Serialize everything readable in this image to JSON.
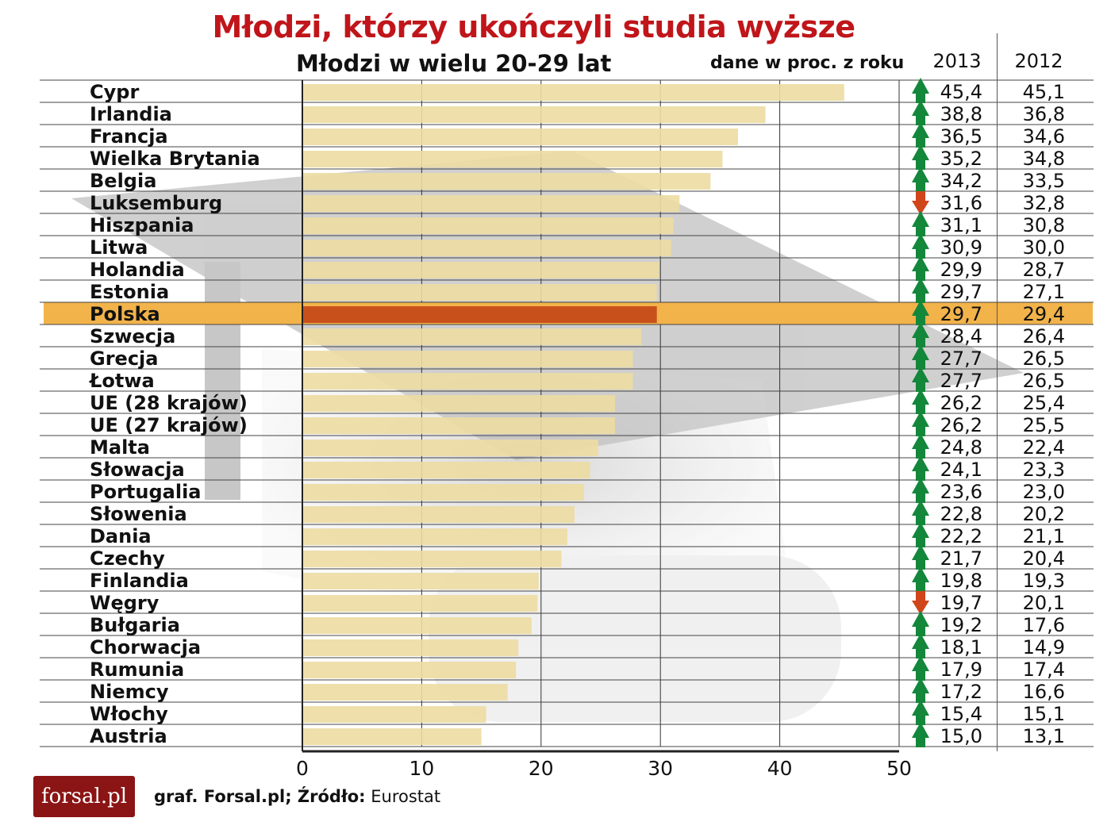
{
  "title": "Młodzi, którzy ukończyli studia wyższe",
  "subtitle": "Młodzi w wielu 20-29 lat",
  "note": "dane w proc. z roku",
  "columns": {
    "y2013": "2013",
    "y2012": "2012"
  },
  "footer": {
    "logo": "forsal.pl",
    "credit": "graf. Forsal.pl; Źródło:",
    "source": "Eurostat"
  },
  "colors": {
    "bar": "#ecdca2",
    "highlight_bar": "#c8501a",
    "highlight_row": "#f2b34a",
    "arrow_up": "#13873a",
    "arrow_down": "#d0451a",
    "title": "#c0151a"
  },
  "chart_data": {
    "type": "bar",
    "orientation": "horizontal",
    "xlim": [
      0,
      50
    ],
    "xticks": [
      0,
      10,
      20,
      30,
      40,
      50
    ],
    "highlight": "Polska",
    "categories": [
      "Cypr",
      "Irlandia",
      "Francja",
      "Wielka Brytania",
      "Belgia",
      "Luksemburg",
      "Hiszpania",
      "Litwa",
      "Holandia",
      "Estonia",
      "Polska",
      "Szwecja",
      "Grecja",
      "Łotwa",
      "UE (28 krajów)",
      "UE (27 krajów)",
      "Malta",
      "Słowacja",
      "Portugalia",
      "Słowenia",
      "Dania",
      "Czechy",
      "Finlandia",
      "Węgry",
      "Bułgaria",
      "Chorwacja",
      "Rumunia",
      "Niemcy",
      "Włochy",
      "Austria"
    ],
    "series": [
      {
        "name": "2013",
        "values": [
          45.4,
          38.8,
          36.5,
          35.2,
          34.2,
          31.6,
          31.1,
          30.9,
          29.9,
          29.7,
          29.7,
          28.4,
          27.7,
          27.7,
          26.2,
          26.2,
          24.8,
          24.1,
          23.6,
          22.8,
          22.2,
          21.7,
          19.8,
          19.7,
          19.2,
          18.1,
          17.9,
          17.2,
          15.4,
          15.0
        ]
      },
      {
        "name": "2012",
        "values": [
          45.1,
          36.8,
          34.6,
          34.8,
          33.5,
          32.8,
          30.8,
          30.0,
          28.7,
          27.1,
          29.4,
          26.4,
          26.5,
          26.5,
          25.4,
          25.5,
          22.4,
          23.3,
          23.0,
          20.2,
          21.1,
          20.4,
          19.3,
          20.1,
          17.6,
          14.9,
          17.4,
          16.6,
          15.1,
          13.1
        ]
      }
    ],
    "labels_2013": [
      "45,4",
      "38,8",
      "36,5",
      "35,2",
      "34,2",
      "31,6",
      "31,1",
      "30,9",
      "29,9",
      "29,7",
      "29,7",
      "28,4",
      "27,7",
      "27,7",
      "26,2",
      "26,2",
      "24,8",
      "24,1",
      "23,6",
      "22,8",
      "22,2",
      "21,7",
      "19,8",
      "19,7",
      "19,2",
      "18,1",
      "17,9",
      "17,2",
      "15,4",
      "15,0"
    ],
    "labels_2012": [
      "45,1",
      "36,8",
      "34,6",
      "34,8",
      "33,5",
      "32,8",
      "30,8",
      "30,0",
      "28,7",
      "27,1",
      "29,4",
      "26,4",
      "26,5",
      "26,5",
      "25,4",
      "25,5",
      "22,4",
      "23,3",
      "23,0",
      "20,2",
      "21,1",
      "20,4",
      "19,3",
      "20,1",
      "17,6",
      "14,9",
      "17,4",
      "16,6",
      "15,1",
      "13,1"
    ],
    "trend": [
      "up",
      "up",
      "up",
      "up",
      "up",
      "down",
      "up",
      "up",
      "up",
      "up",
      "up",
      "up",
      "up",
      "up",
      "up",
      "up",
      "up",
      "up",
      "up",
      "up",
      "up",
      "up",
      "up",
      "down",
      "up",
      "up",
      "up",
      "up",
      "up",
      "up"
    ]
  }
}
